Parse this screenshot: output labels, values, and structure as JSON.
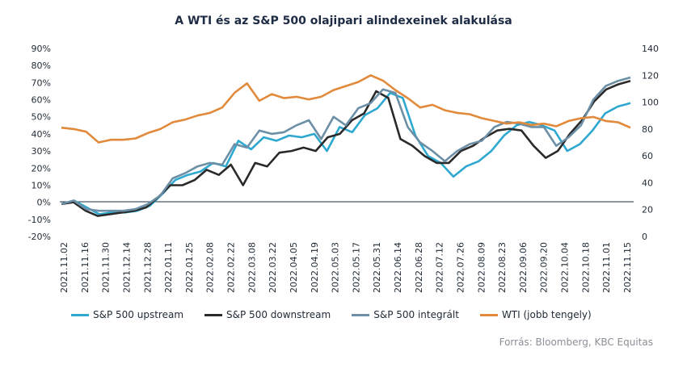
{
  "chart_data": {
    "type": "line",
    "title": "A WTI és az S&P 500 olajipari alindexeinek alakulása",
    "source": "Forrás: Bloomberg, KBC Equitas",
    "y_left": {
      "ticks": [
        "-20%",
        "-10%",
        "0%",
        "10%",
        "20%",
        "30%",
        "40%",
        "50%",
        "60%",
        "70%",
        "80%",
        "90%"
      ],
      "ylim": [
        -20,
        90
      ]
    },
    "y_right": {
      "ticks": [
        "0",
        "20",
        "40",
        "60",
        "80",
        "100",
        "120",
        "140"
      ],
      "ylim": [
        0,
        140
      ]
    },
    "x_ticks": [
      "2021.11.02",
      "2021.11.16",
      "2021.11.30",
      "2021.12.14",
      "2021.12.28",
      "2022.01.11",
      "2022.01.25",
      "2022.02.08",
      "2022.02.22",
      "2022.03.08",
      "2022.03.22",
      "2022.04.05",
      "2022.04.19",
      "2022.05.03",
      "2022.05.17",
      "2022.05.31",
      "2022.06.14",
      "2022.06.28",
      "2022.07.12",
      "2022.07.26",
      "2022.08.09",
      "2022.08.23",
      "2022.09.06",
      "2022.09.20",
      "2022.10.04",
      "2022.10.18",
      "2022.11.01",
      "2022.11.15"
    ],
    "series": [
      {
        "name": "S&P 500 upstream",
        "color": "#2ea8d0",
        "axis": "left",
        "values": [
          -1,
          1,
          -3,
          -7,
          -6,
          -6,
          -5,
          -2,
          5,
          13,
          16,
          18,
          23,
          21,
          36,
          31,
          38,
          36,
          39,
          38,
          40,
          30,
          44,
          41,
          51,
          55,
          64,
          61,
          39,
          27,
          23,
          15,
          21,
          24,
          30,
          39,
          45,
          47,
          45,
          42,
          30,
          34,
          42,
          52,
          56,
          58
        ]
      },
      {
        "name": "S&P 500 downstream",
        "color": "#2a2a2a",
        "axis": "left",
        "values": [
          -1,
          0,
          -5,
          -8,
          -7,
          -6,
          -5,
          -3,
          3,
          10,
          10,
          13,
          19,
          16,
          22,
          10,
          23,
          21,
          29,
          30,
          32,
          30,
          38,
          40,
          48,
          52,
          65,
          61,
          37,
          33,
          27,
          23,
          23,
          30,
          33,
          38,
          42,
          43,
          42,
          33,
          26,
          30,
          40,
          48,
          59,
          66,
          69,
          71
        ]
      },
      {
        "name": "S&P 500 integrált",
        "color": "#6c8fa6",
        "axis": "left",
        "values": [
          -1,
          1,
          -4,
          -5,
          -5,
          -5,
          -4,
          -1,
          4,
          14,
          17,
          21,
          23,
          22,
          34,
          32,
          42,
          40,
          41,
          45,
          48,
          37,
          50,
          45,
          55,
          58,
          66,
          64,
          44,
          35,
          30,
          24,
          30,
          34,
          36,
          44,
          47,
          46,
          44,
          44,
          33,
          38,
          45,
          60,
          68,
          71,
          73
        ]
      },
      {
        "name": "WTI (jobb tengely)",
        "color": "#e28a3c",
        "axis": "right",
        "values": [
          81,
          80,
          78,
          70,
          72,
          72,
          73,
          77,
          80,
          85,
          87,
          90,
          92,
          96,
          107,
          114,
          101,
          106,
          103,
          104,
          102,
          104,
          109,
          112,
          115,
          120,
          116,
          109,
          103,
          96,
          98,
          94,
          92,
          91,
          88,
          86,
          84,
          85,
          83,
          84,
          82,
          86,
          88,
          89,
          86,
          85,
          81
        ]
      }
    ]
  }
}
